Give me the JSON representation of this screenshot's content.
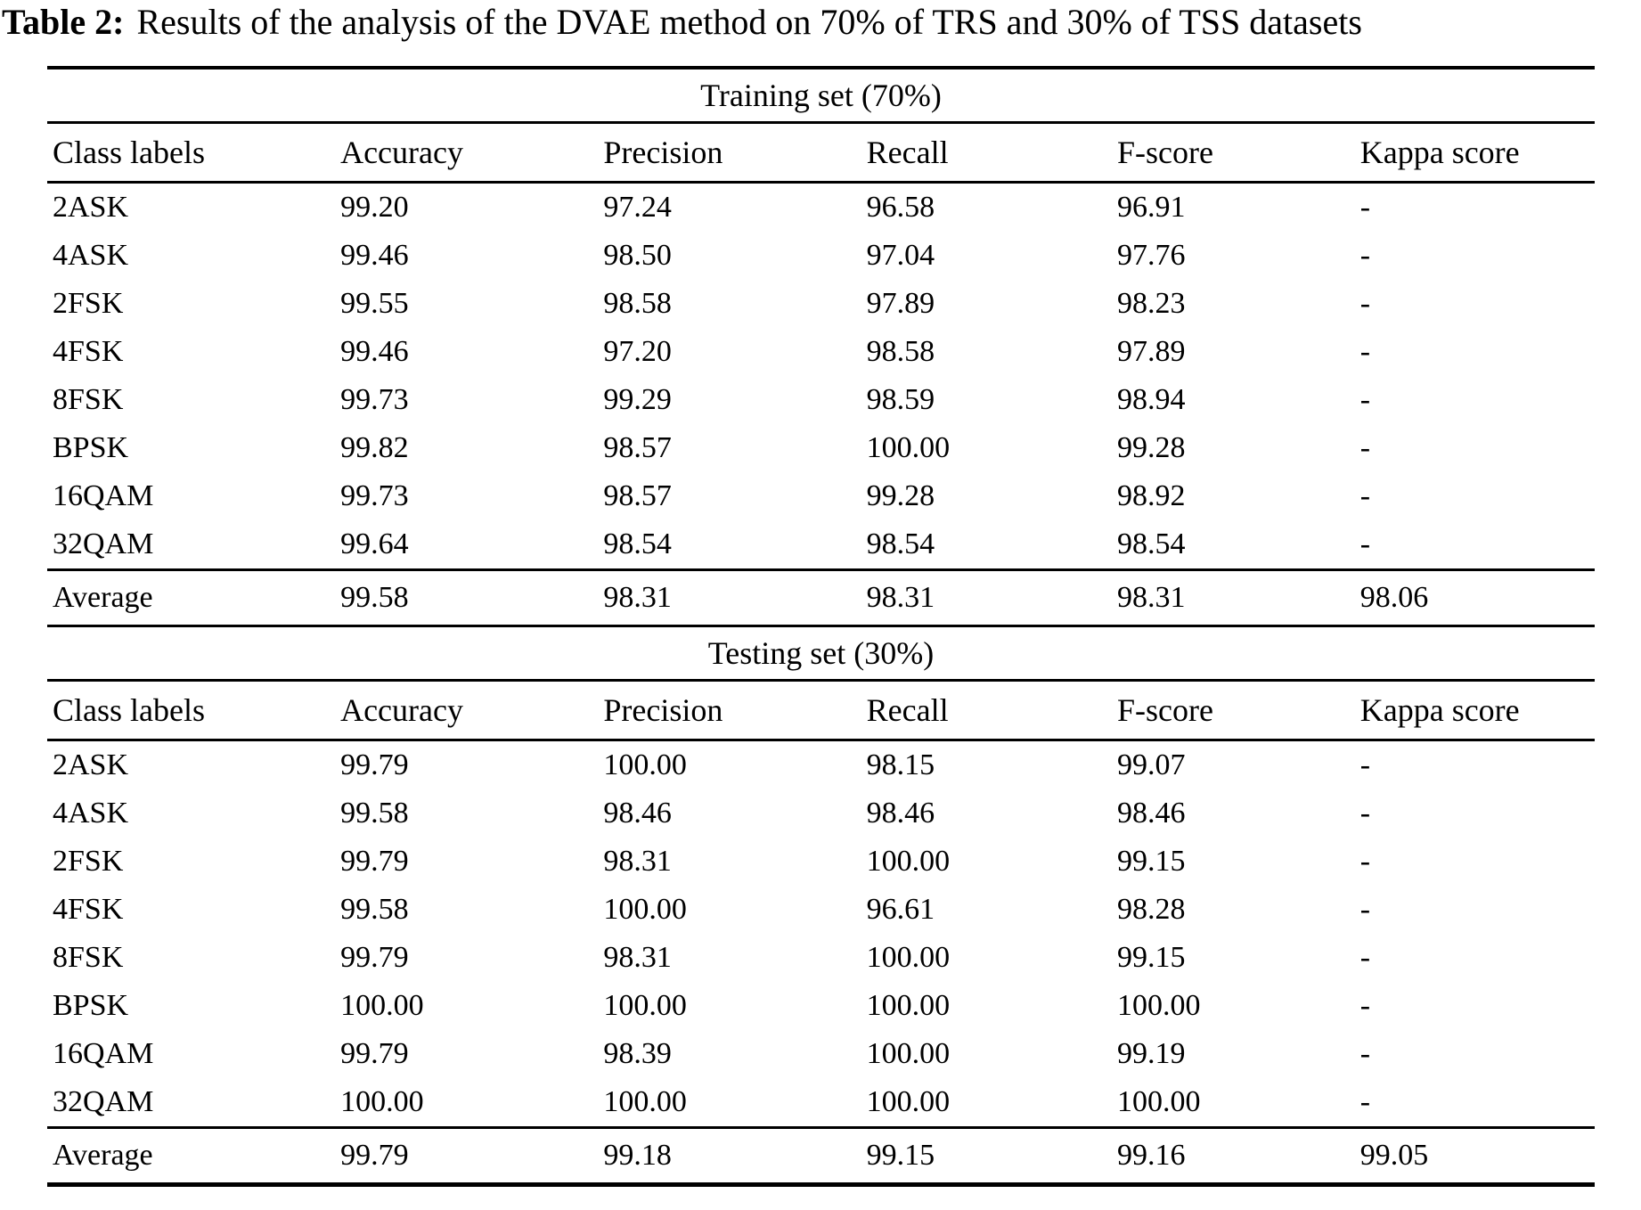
{
  "caption": {
    "label": "Table 2:",
    "text": "Results of the analysis of the DVAE method on 70% of TRS and 30% of TSS datasets"
  },
  "columns": [
    "Class labels",
    "Accuracy",
    "Precision",
    "Recall",
    "F-score",
    "Kappa score"
  ],
  "sections": [
    {
      "heading": "Training set (70%)",
      "rows": [
        [
          "2ASK",
          "99.20",
          "97.24",
          "96.58",
          "96.91",
          "-"
        ],
        [
          "4ASK",
          "99.46",
          "98.50",
          "97.04",
          "97.76",
          "-"
        ],
        [
          "2FSK",
          "99.55",
          "98.58",
          "97.89",
          "98.23",
          "-"
        ],
        [
          "4FSK",
          "99.46",
          "97.20",
          "98.58",
          "97.89",
          "-"
        ],
        [
          "8FSK",
          "99.73",
          "99.29",
          "98.59",
          "98.94",
          "-"
        ],
        [
          "BPSK",
          "99.82",
          "98.57",
          "100.00",
          "99.28",
          "-"
        ],
        [
          "16QAM",
          "99.73",
          "98.57",
          "99.28",
          "98.92",
          "-"
        ],
        [
          "32QAM",
          "99.64",
          "98.54",
          "98.54",
          "98.54",
          "-"
        ]
      ],
      "average": [
        "Average",
        "99.58",
        "98.31",
        "98.31",
        "98.31",
        "98.06"
      ]
    },
    {
      "heading": "Testing set (30%)",
      "rows": [
        [
          "2ASK",
          "99.79",
          "100.00",
          "98.15",
          "99.07",
          "-"
        ],
        [
          "4ASK",
          "99.58",
          "98.46",
          "98.46",
          "98.46",
          "-"
        ],
        [
          "2FSK",
          "99.79",
          "98.31",
          "100.00",
          "99.15",
          "-"
        ],
        [
          "4FSK",
          "99.58",
          "100.00",
          "96.61",
          "98.28",
          "-"
        ],
        [
          "8FSK",
          "99.79",
          "98.31",
          "100.00",
          "99.15",
          "-"
        ],
        [
          "BPSK",
          "100.00",
          "100.00",
          "100.00",
          "100.00",
          "-"
        ],
        [
          "16QAM",
          "99.79",
          "98.39",
          "100.00",
          "99.19",
          "-"
        ],
        [
          "32QAM",
          "100.00",
          "100.00",
          "100.00",
          "100.00",
          "-"
        ]
      ],
      "average": [
        "Average",
        "99.79",
        "99.18",
        "99.15",
        "99.16",
        "99.05"
      ]
    }
  ],
  "layout": {
    "column_width_pct": [
      "18.6",
      "17.0",
      "17.0",
      "16.2",
      "15.7",
      "15.5"
    ]
  }
}
